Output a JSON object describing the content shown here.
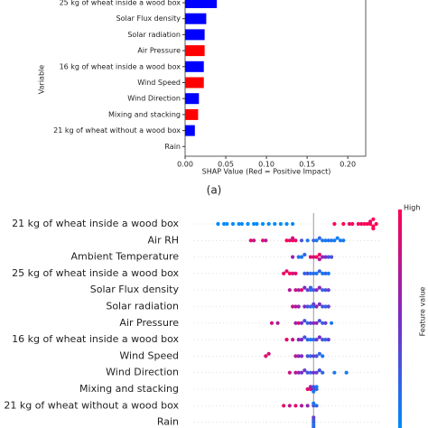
{
  "chart_data": [
    {
      "type": "barh",
      "caption": "(a)",
      "xlabel": "SHAP Value (Red = Positive Impact)",
      "ylabel": "Variable",
      "categories": [
        "25 kg of wheat inside a wood box",
        "Solar Flux density",
        "Solar radiation",
        "Air Pressure",
        "16 kg of wheat inside a wood box",
        "Wind Speed",
        "Wind Direction",
        "Mixing and stacking",
        "21 kg of wheat without a wood box",
        "Rain"
      ],
      "values": [
        0.039,
        0.026,
        0.024,
        0.024,
        0.023,
        0.023,
        0.017,
        0.016,
        0.012,
        0
      ],
      "colors": [
        "#0000ff",
        "#0000ff",
        "#0000ff",
        "#ff0000",
        "#0000ff",
        "#ff0000",
        "#0000ff",
        "#ff0000",
        "#0000ff",
        "#0000ff"
      ],
      "xlim": [
        0,
        0.222
      ],
      "xticks": [
        {
          "value": 0,
          "label": "0.00"
        },
        {
          "value": 0.05,
          "label": "0.05"
        },
        {
          "value": 0.1,
          "label": "0.10"
        },
        {
          "value": 0.15,
          "label": "0.15"
        },
        {
          "value": 0.2,
          "label": "0.20"
        }
      ]
    },
    {
      "type": "beeswarm",
      "colorbar_high": "High",
      "colorbar_label": "Feature value",
      "colormap": [
        "#008bfb",
        "#7a2cc8",
        "#ff0052"
      ],
      "vline": 0,
      "xlim": [
        -0.4,
        0.22
      ],
      "categories": [
        "21 kg of wheat inside a wood box",
        "Air RH",
        "Ambient Temperature",
        "25 kg of wheat inside a wood box",
        "Solar Flux density",
        "Solar radiation",
        "Air Pressure",
        "16 kg of wheat inside a wood box",
        "Wind Speed",
        "Wind Direction",
        "Mixing and stacking",
        "21 kg of wheat without a wood box",
        "Rain"
      ],
      "values": [
        [
          -0.32,
          -0.3,
          -0.29,
          -0.27,
          -0.25,
          -0.24,
          -0.22,
          -0.2,
          -0.19,
          -0.17,
          -0.15,
          -0.13,
          -0.11,
          -0.09,
          -0.07,
          0.07,
          0.1,
          0.12,
          0.13,
          0.15,
          0.16,
          0.17,
          0.18,
          0.19,
          0.19,
          0.2,
          0.2,
          0.2,
          0.21
        ],
        [
          -0.21,
          -0.2,
          -0.17,
          -0.16,
          -0.09,
          -0.08,
          -0.07,
          -0.07,
          -0.06,
          -0.04,
          -0.02,
          0,
          0.01,
          0.02,
          0.03,
          0.04,
          0.05,
          0.06,
          0.07,
          0.08,
          0.09,
          0.1
        ],
        [
          -0.07,
          -0.05,
          -0.04,
          -0.03,
          -0.01,
          0,
          0.01,
          0.02,
          0.02,
          0.03,
          0.04,
          0.05,
          0.06
        ],
        [
          -0.1,
          -0.09,
          -0.08,
          -0.07,
          -0.06,
          -0.03,
          -0.02,
          -0.01,
          0,
          0.01,
          0.02,
          0.03,
          0.04,
          0.05
        ],
        [
          -0.08,
          -0.06,
          -0.05,
          -0.04,
          -0.03,
          -0.02,
          -0.01,
          -0.01,
          0,
          0.01,
          0.02,
          0.03,
          0.04,
          0.05
        ],
        [
          -0.07,
          -0.06,
          -0.05,
          -0.03,
          -0.02,
          -0.01,
          0,
          0,
          0.01,
          0.02,
          0.03,
          0.04,
          0.05
        ],
        [
          -0.14,
          -0.12,
          -0.06,
          -0.05,
          -0.04,
          -0.03,
          -0.02,
          -0.01,
          0,
          0.01,
          0.02,
          0.03,
          0.04,
          0.06
        ],
        [
          -0.09,
          -0.07,
          -0.05,
          -0.04,
          -0.03,
          -0.02,
          -0.01,
          0,
          0.01,
          0.02,
          0.03,
          0.04,
          0.05
        ],
        [
          -0.16,
          -0.15,
          -0.06,
          -0.05,
          -0.04,
          -0.02,
          -0.01,
          0,
          0.01,
          0.02,
          0.03
        ],
        [
          -0.08,
          -0.06,
          -0.05,
          -0.04,
          -0.03,
          -0.02,
          -0.01,
          0,
          0.01,
          0.02,
          0.03,
          0.07,
          0.11
        ],
        [
          -0.02,
          -0.01,
          -0.01,
          0,
          0,
          0,
          0.01,
          0.01
        ],
        [
          -0.1,
          -0.08,
          -0.06,
          -0.04,
          -0.02,
          0,
          0,
          0.01
        ],
        [
          0,
          0,
          0,
          0,
          0
        ]
      ],
      "feature_values": [
        [
          0,
          0,
          0,
          0,
          0,
          0,
          0,
          0,
          0,
          0,
          0,
          0,
          0,
          0,
          0,
          1,
          1,
          0.9,
          1,
          1,
          0.9,
          1,
          1,
          1,
          0.9,
          1,
          1,
          1,
          1
        ],
        [
          0.9,
          0.8,
          0.9,
          0.7,
          1,
          0.9,
          1,
          0.8,
          0.9,
          0.3,
          0.1,
          0.2,
          0.1,
          0.2,
          0.1,
          0.1,
          0.15,
          0.1,
          0.1,
          0.05,
          0.1,
          0.1
        ],
        [
          0.6,
          0.1,
          0.1,
          0.2,
          0.9,
          0.8,
          1,
          0.9,
          0.7,
          0.6,
          0.5,
          0.3,
          0.3
        ],
        [
          0.9,
          0.9,
          1,
          0.8,
          0.9,
          0.2,
          0.3,
          0.1,
          0.2,
          0.1,
          0.2,
          0.1,
          0.2,
          0.1
        ],
        [
          0.7,
          0.8,
          0.6,
          0.9,
          0.5,
          0.4,
          0.1,
          0.2,
          0.3,
          0.5,
          0.6,
          0.2,
          0.3,
          0.4
        ],
        [
          0.8,
          0.7,
          0.6,
          0.5,
          0.3,
          0.2,
          0.1,
          0.4,
          0.6,
          0.5,
          0.3,
          0.2,
          0.4
        ],
        [
          0.8,
          0.7,
          0.6,
          0.9,
          0.5,
          0.3,
          0.2,
          0.4,
          0.5,
          0.6,
          0.3,
          0.2,
          0.4,
          0.1
        ],
        [
          0.9,
          0.8,
          0.6,
          0.5,
          0.3,
          0.2,
          0.1,
          0.2,
          0.4,
          0.5,
          0.3,
          0.2,
          0.4
        ],
        [
          0.9,
          0.8,
          0.7,
          0.6,
          0.5,
          0.3,
          0.2,
          0.4,
          0.3,
          0.2,
          0.1
        ],
        [
          0.8,
          0.7,
          0.6,
          0.5,
          0.4,
          0.3,
          0.2,
          0.5,
          0.4,
          0.3,
          0.2,
          0.1,
          0.1
        ],
        [
          0.9,
          0.8,
          0.6,
          0.5,
          0.3,
          0.1,
          0.2,
          0.1
        ],
        [
          0.9,
          0.8,
          0.9,
          0.7,
          0.6,
          0.3,
          0.1,
          0.2
        ],
        [
          0.3,
          0.2,
          0.1,
          0.4,
          0.2
        ]
      ]
    }
  ]
}
